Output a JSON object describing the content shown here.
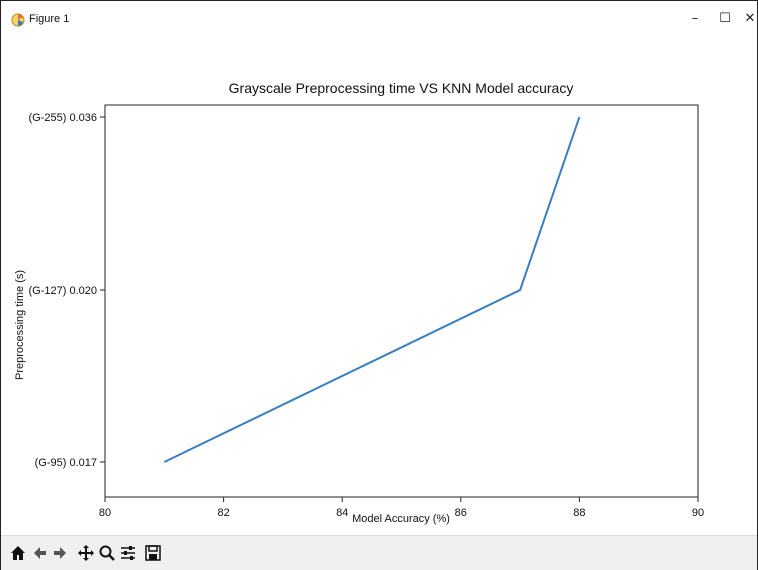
{
  "window": {
    "title": "Figure 1",
    "controls": {
      "minimize": "–",
      "maximize": "☐",
      "close": "✕"
    }
  },
  "chart_data": {
    "type": "line",
    "title": "Grayscale Preprocessing time VS KNN Model accuracy",
    "xlabel": "Model Accuracy (%)",
    "ylabel": "Preprocessing time (s)",
    "xlim": [
      80,
      90
    ],
    "x_ticks": [
      80,
      82,
      84,
      86,
      88,
      90
    ],
    "y_ticks": [
      {
        "value": 0.017,
        "label": "(G-95) 0.017"
      },
      {
        "value": 0.02,
        "label": "(G-127) 0.020"
      },
      {
        "value": 0.036,
        "label": "(G-255) 0.036"
      }
    ],
    "series": [
      {
        "color": "#3a7ebf",
        "points": [
          {
            "x": 81,
            "y": 0.017
          },
          {
            "x": 87,
            "y": 0.02
          },
          {
            "x": 88,
            "y": 0.036
          }
        ]
      }
    ],
    "grid": false
  },
  "toolbar": {
    "buttons": [
      "home-icon",
      "back-icon",
      "forward-icon",
      "pan-icon",
      "zoom-icon",
      "configure-icon",
      "save-icon"
    ]
  }
}
